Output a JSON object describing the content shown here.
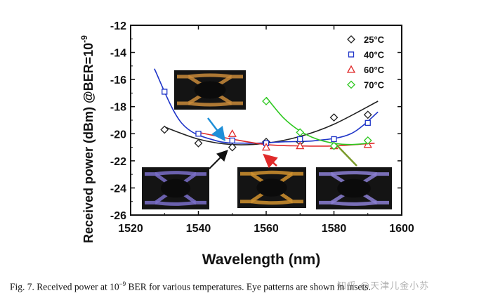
{
  "chart_data": {
    "type": "scatter",
    "xlabel": "Wavelength (nm)",
    "ylabel": "Received power (dBm) @BER=10",
    "ylabel_exponent": "-9",
    "xlim": [
      1520,
      1600
    ],
    "ylim": [
      -26,
      -12
    ],
    "xticks": [
      "1520",
      "1540",
      "1560",
      "1580",
      "1600"
    ],
    "yticks": [
      "-12",
      "-14",
      "-16",
      "-18",
      "-20",
      "-22",
      "-24",
      "-26"
    ],
    "legend_position": "top-right",
    "series": [
      {
        "name": "25°C",
        "marker": "diamond",
        "color": "#222222",
        "x": [
          1530,
          1540,
          1550,
          1560,
          1570,
          1580,
          1590
        ],
        "y": [
          -19.7,
          -20.7,
          -21.0,
          -20.6,
          -20.6,
          -18.8,
          -18.6
        ],
        "fit": [
          [
            1530,
            -19.5
          ],
          [
            1540,
            -20.4
          ],
          [
            1550,
            -20.8
          ],
          [
            1560,
            -20.7
          ],
          [
            1570,
            -20.2
          ],
          [
            1580,
            -19.3
          ],
          [
            1593,
            -17.6
          ]
        ]
      },
      {
        "name": "40°C",
        "marker": "square",
        "color": "#1f35c8",
        "x": [
          1530,
          1540,
          1550,
          1560,
          1570,
          1580,
          1590
        ],
        "y": [
          -16.9,
          -20.0,
          -20.5,
          -20.7,
          -20.4,
          -20.4,
          -19.2
        ],
        "fit": [
          [
            1527,
            -15.2
          ],
          [
            1535,
            -19.2
          ],
          [
            1545,
            -20.5
          ],
          [
            1555,
            -20.7
          ],
          [
            1565,
            -20.6
          ],
          [
            1575,
            -20.5
          ],
          [
            1585,
            -20.0
          ],
          [
            1593,
            -18.4
          ]
        ]
      },
      {
        "name": "60°C",
        "marker": "triangle",
        "color": "#e02a2a",
        "x": [
          1550,
          1560,
          1570,
          1580,
          1590
        ],
        "y": [
          -20.0,
          -21.0,
          -20.9,
          -20.9,
          -20.8
        ],
        "fit": [
          [
            1540,
            -19.9
          ],
          [
            1550,
            -20.4
          ],
          [
            1560,
            -20.8
          ],
          [
            1570,
            -20.9
          ],
          [
            1580,
            -20.9
          ],
          [
            1592,
            -20.7
          ]
        ]
      },
      {
        "name": "70°C",
        "marker": "diamond",
        "color": "#2ec820",
        "x": [
          1560,
          1570,
          1580,
          1590
        ],
        "y": [
          -17.6,
          -19.9,
          -20.9,
          -20.5
        ],
        "fit": [
          [
            1560,
            -17.3
          ],
          [
            1565,
            -18.8
          ],
          [
            1570,
            -19.8
          ],
          [
            1575,
            -20.4
          ],
          [
            1580,
            -20.7
          ],
          [
            1585,
            -20.8
          ],
          [
            1590,
            -20.7
          ]
        ]
      }
    ],
    "insets": [
      {
        "label": "eye-pattern-40C",
        "color": "#c88a3a"
      },
      {
        "label": "eye-pattern-25C",
        "color": "#7a6fc9"
      },
      {
        "label": "eye-pattern-60C",
        "color": "#d0902e"
      },
      {
        "label": "eye-pattern-70C",
        "color": "#8b7fd4"
      }
    ]
  },
  "caption": {
    "prefix": "Fig. 7. Received power at 10",
    "exponent": "−9",
    "suffix": " BER for various temperatures. Eye patterns are shown in insets."
  },
  "watermark": "知乎 @天津儿金小苏"
}
